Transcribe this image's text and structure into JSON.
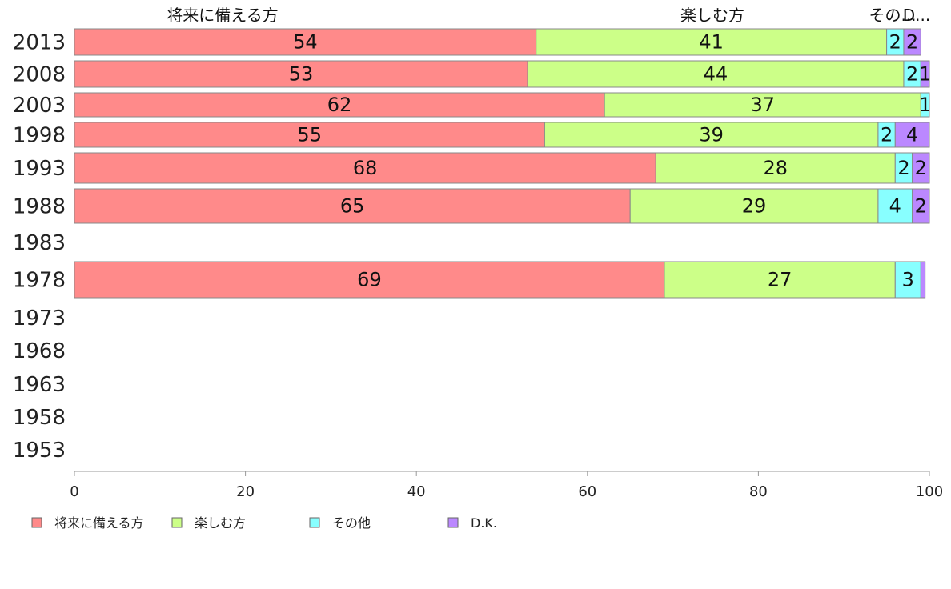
{
  "chart_data": {
    "type": "bar",
    "orientation": "horizontal",
    "stacked": true,
    "xlim": [
      0,
      100
    ],
    "x_ticks": [
      0,
      20,
      40,
      60,
      80,
      100
    ],
    "categories": [
      "2013",
      "2008",
      "2003",
      "1998",
      "1993",
      "1988",
      "1983",
      "1978",
      "1973",
      "1968",
      "1963",
      "1958",
      "1953"
    ],
    "series": [
      {
        "name": "将来に備える方",
        "head": "将来に備える方",
        "color": "#ff8a8a",
        "values": [
          54,
          53,
          62,
          55,
          68,
          65,
          null,
          69,
          null,
          null,
          null,
          null,
          null
        ],
        "labels": [
          "54",
          "53",
          "62",
          "55",
          "68",
          "65",
          "",
          "69",
          "",
          "",
          "",
          "",
          ""
        ]
      },
      {
        "name": "楽しむ方",
        "head": "楽しむ方",
        "color": "#ccff88",
        "values": [
          41,
          44,
          37,
          39,
          28,
          29,
          null,
          27,
          null,
          null,
          null,
          null,
          null
        ],
        "labels": [
          "41",
          "44",
          "37",
          "39",
          "28",
          "29",
          "",
          "27",
          "",
          "",
          "",
          "",
          ""
        ]
      },
      {
        "name": "その他",
        "head": "その...",
        "color": "#88ffff",
        "values": [
          2,
          2,
          1,
          2,
          2,
          4,
          null,
          3,
          null,
          null,
          null,
          null,
          null
        ],
        "labels": [
          "2",
          "2",
          "1",
          "2",
          "2",
          "4",
          "",
          "3",
          "",
          "",
          "",
          "",
          ""
        ]
      },
      {
        "name": "D.K.",
        "head": "D...",
        "color": "#bb88ff",
        "values": [
          2,
          1,
          0,
          4,
          2,
          2,
          null,
          0.5,
          null,
          null,
          null,
          null,
          null
        ],
        "labels": [
          "2",
          "1",
          "",
          "4",
          "2",
          "2",
          "",
          "",
          "",
          "",
          "",
          "",
          ""
        ]
      }
    ],
    "legend_position": "bottom-left"
  }
}
